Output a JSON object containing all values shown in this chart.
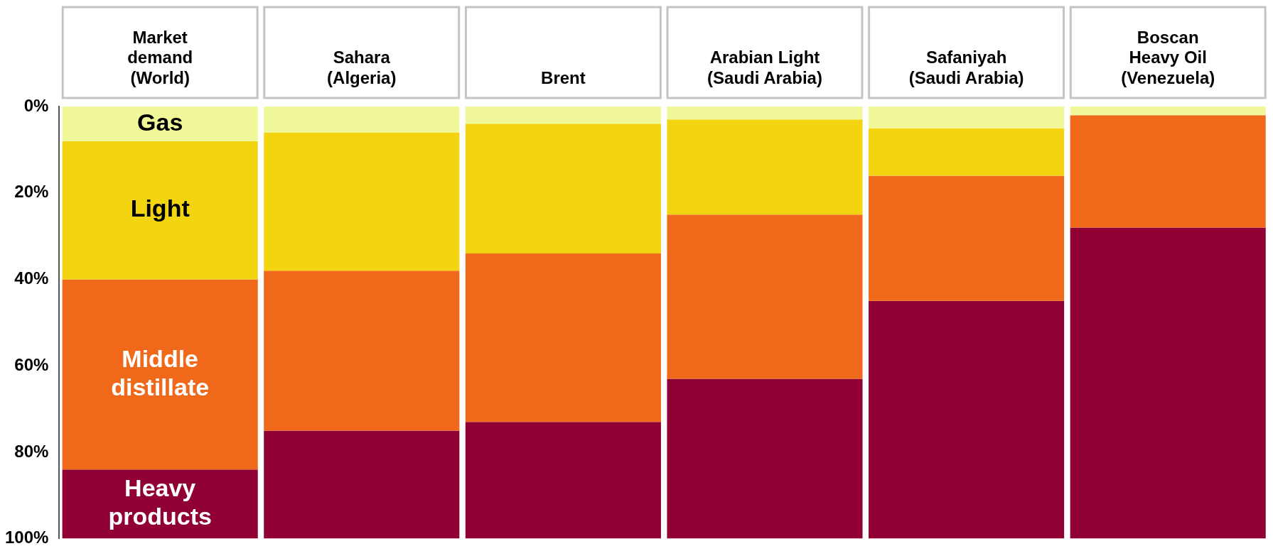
{
  "chart_data": {
    "type": "bar",
    "stacked": true,
    "categories": [
      "Market\ndemand\n(World)",
      "Sahara\n(Algeria)",
      "Brent",
      "Arabian Light\n(Saudi Arabia)",
      "Safaniyah\n(Saudi Arabia)",
      "Boscan\nHeavy Oil\n(Venezuela)"
    ],
    "series": [
      {
        "name": "Gas",
        "color": "#f0f89a",
        "values": [
          8,
          6,
          4,
          3,
          5,
          2
        ]
      },
      {
        "name": "Light",
        "color": "#f2d410",
        "values": [
          32,
          32,
          30,
          22,
          11,
          0
        ]
      },
      {
        "name": "Middle distillate",
        "color": "#f0691a",
        "values": [
          44,
          37,
          39,
          38,
          29,
          26
        ]
      },
      {
        "name": "Heavy products",
        "color": "#900034",
        "values": [
          16,
          25,
          27,
          37,
          55,
          72
        ]
      }
    ],
    "ylim": [
      100,
      0
    ],
    "yticks": [
      {
        "value": 0,
        "label": "0%"
      },
      {
        "value": 20,
        "label": "20%"
      },
      {
        "value": 40,
        "label": "40%"
      },
      {
        "value": 60,
        "label": "60%"
      },
      {
        "value": 80,
        "label": "80%"
      },
      {
        "value": 100,
        "label": "100%"
      }
    ],
    "grid": false,
    "legend": false
  }
}
